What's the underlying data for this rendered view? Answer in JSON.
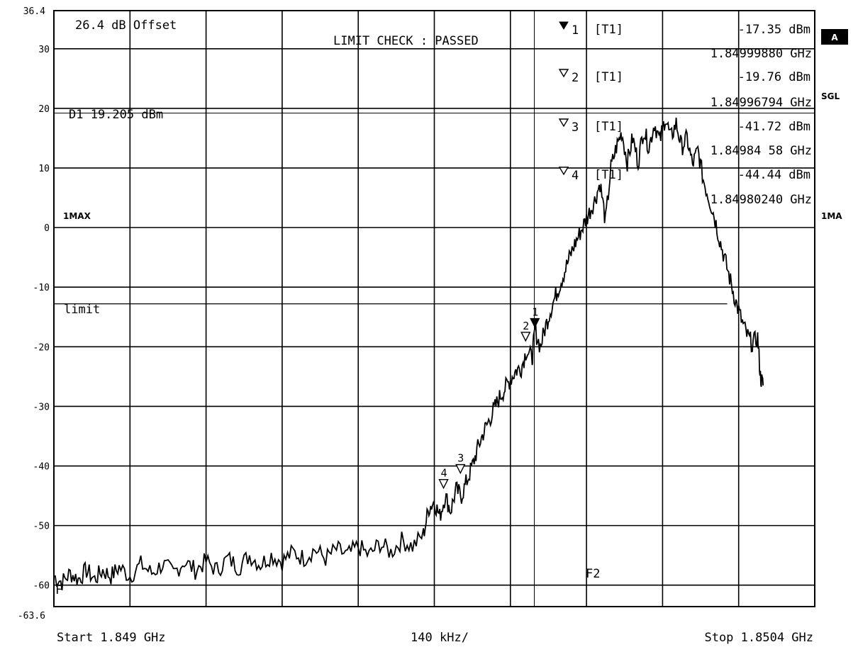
{
  "chart_data": {
    "type": "line",
    "x_axis": {
      "start_label": "Start 1.849 GHz",
      "span_label": "140 kHz/",
      "stop_label": "Stop 1.8504 GHz",
      "range_ghz": [
        1.849,
        1.8504
      ]
    },
    "y_axis": {
      "unit": "dBm",
      "top_label": "36.4",
      "bottom_label": "-63.6",
      "range": [
        -63.6,
        36.4
      ],
      "ticks": [
        30,
        20,
        10,
        0,
        -10,
        -20,
        -30,
        -40,
        -50,
        -60
      ]
    },
    "offset_label": "26.4 dB Offset",
    "limit_check_label": "LIMIT CHECK  : PASSED",
    "display_line": {
      "label": "D1 19.205 dBm",
      "value": 19.205
    },
    "limit_line": {
      "label": "limit",
      "value": -12.8,
      "end_fraction": 0.885
    },
    "f2_line": {
      "label": "F2",
      "value_ghz": 1.849884
    },
    "left_labels": {
      "trace_mode": "1MAX",
      "f_marker": "F"
    },
    "right_labels": {
      "box": "A",
      "sweep": "SGL",
      "trace": "1MA"
    },
    "markers": [
      {
        "id": "1",
        "filled": true,
        "symbol_label": "1",
        "trace": "[T1]",
        "level": "-17.35 dBm",
        "freq": "1.84999880 GHz",
        "x_ghz": 1.849885,
        "y": -16.7
      },
      {
        "id": "2",
        "filled": false,
        "symbol_label": "2",
        "trace": "[T1]",
        "level": "-19.76 dBm",
        "freq": "1.84996794 GHz",
        "x_ghz": 1.849868,
        "y": -19.0
      },
      {
        "id": "3",
        "filled": false,
        "symbol_label": "3",
        "trace": "[T1]",
        "level": "-41.72 dBm",
        "freq": "1.84984 58 GHz",
        "x_ghz": 1.849748,
        "y": -41.2
      },
      {
        "id": "4",
        "filled": false,
        "symbol_label": "4",
        "trace": "[T1]",
        "level": "-44.44 dBm",
        "freq": "1.84980240 GHz",
        "x_ghz": 1.849717,
        "y": -43.7
      }
    ],
    "trace": [
      [
        1.849,
        -58.5
      ],
      [
        1.849015,
        -59.5
      ],
      [
        1.84903,
        -58.0
      ],
      [
        1.849045,
        -59.0
      ],
      [
        1.84906,
        -57.5
      ],
      [
        1.849075,
        -59.0
      ],
      [
        1.84909,
        -57.5
      ],
      [
        1.849105,
        -58.5
      ],
      [
        1.84912,
        -57.0
      ],
      [
        1.84914,
        -58.5
      ],
      [
        1.84916,
        -56.5
      ],
      [
        1.84918,
        -58.0
      ],
      [
        1.8492,
        -56.5
      ],
      [
        1.84922,
        -58.0
      ],
      [
        1.84924,
        -56.0
      ],
      [
        1.84926,
        -57.5
      ],
      [
        1.84928,
        -56.0
      ],
      [
        1.8493,
        -57.5
      ],
      [
        1.84932,
        -55.5
      ],
      [
        1.84934,
        -57.0
      ],
      [
        1.84936,
        -55.0
      ],
      [
        1.84938,
        -56.5
      ],
      [
        1.8494,
        -55.0
      ],
      [
        1.84942,
        -56.0
      ],
      [
        1.84944,
        -54.5
      ],
      [
        1.84946,
        -55.5
      ],
      [
        1.84948,
        -54.0
      ],
      [
        1.8495,
        -55.5
      ],
      [
        1.84952,
        -54.0
      ],
      [
        1.84954,
        -55.0
      ],
      [
        1.84956,
        -53.5
      ],
      [
        1.84958,
        -55.0
      ],
      [
        1.8496,
        -53.0
      ],
      [
        1.84962,
        -54.5
      ],
      [
        1.84964,
        -52.5
      ],
      [
        1.84966,
        -53.5
      ],
      [
        1.84968,
        -51.5
      ],
      [
        1.84969,
        -47.0
      ],
      [
        1.8497,
        -46.0
      ],
      [
        1.84971,
        -48.5
      ],
      [
        1.84972,
        -45.0
      ],
      [
        1.84973,
        -47.5
      ],
      [
        1.84974,
        -44.0
      ],
      [
        1.84975,
        -45.0
      ],
      [
        1.84976,
        -42.5
      ],
      [
        1.84977,
        -40.0
      ],
      [
        1.84978,
        -37.0
      ],
      [
        1.84979,
        -34.5
      ],
      [
        1.8498,
        -32.5
      ],
      [
        1.84981,
        -30.5
      ],
      [
        1.84982,
        -28.5
      ],
      [
        1.84983,
        -27.0
      ],
      [
        1.84984,
        -25.5
      ],
      [
        1.84985,
        -24.0
      ],
      [
        1.84986,
        -23.5
      ],
      [
        1.84987,
        -20.5
      ],
      [
        1.84988,
        -22.0
      ],
      [
        1.849885,
        -17.2
      ],
      [
        1.849895,
        -20.0
      ],
      [
        1.849905,
        -16.5
      ],
      [
        1.849915,
        -13.5
      ],
      [
        1.849925,
        -11.0
      ],
      [
        1.849935,
        -8.5
      ],
      [
        1.849945,
        -6.0
      ],
      [
        1.849955,
        -3.5
      ],
      [
        1.849965,
        -1.5
      ],
      [
        1.849975,
        0.5
      ],
      [
        1.849985,
        2.5
      ],
      [
        1.849995,
        4.5
      ],
      [
        1.850005,
        7.5
      ],
      [
        1.850015,
        1.0
      ],
      [
        1.850025,
        10.0
      ],
      [
        1.850035,
        13.5
      ],
      [
        1.850045,
        16.0
      ],
      [
        1.850055,
        11.0
      ],
      [
        1.850065,
        15.0
      ],
      [
        1.850075,
        11.0
      ],
      [
        1.850085,
        16.5
      ],
      [
        1.850095,
        13.5
      ],
      [
        1.850105,
        17.5
      ],
      [
        1.850115,
        14.5
      ],
      [
        1.850125,
        18.5
      ],
      [
        1.850135,
        15.0
      ],
      [
        1.850145,
        17.5
      ],
      [
        1.850155,
        13.5
      ],
      [
        1.850165,
        15.0
      ],
      [
        1.850175,
        10.5
      ],
      [
        1.850185,
        13.0
      ],
      [
        1.850195,
        8.0
      ],
      [
        1.850205,
        5.0
      ],
      [
        1.850215,
        2.0
      ],
      [
        1.850225,
        -2.0
      ],
      [
        1.850235,
        -5.5
      ],
      [
        1.850245,
        -9.0
      ],
      [
        1.850255,
        -12.5
      ],
      [
        1.850265,
        -15.5
      ],
      [
        1.850275,
        -18.0
      ],
      [
        1.850285,
        -19.5
      ],
      [
        1.850295,
        -18.5
      ],
      [
        1.8503,
        -25.0
      ],
      [
        1.850305,
        -26.5
      ]
    ]
  }
}
